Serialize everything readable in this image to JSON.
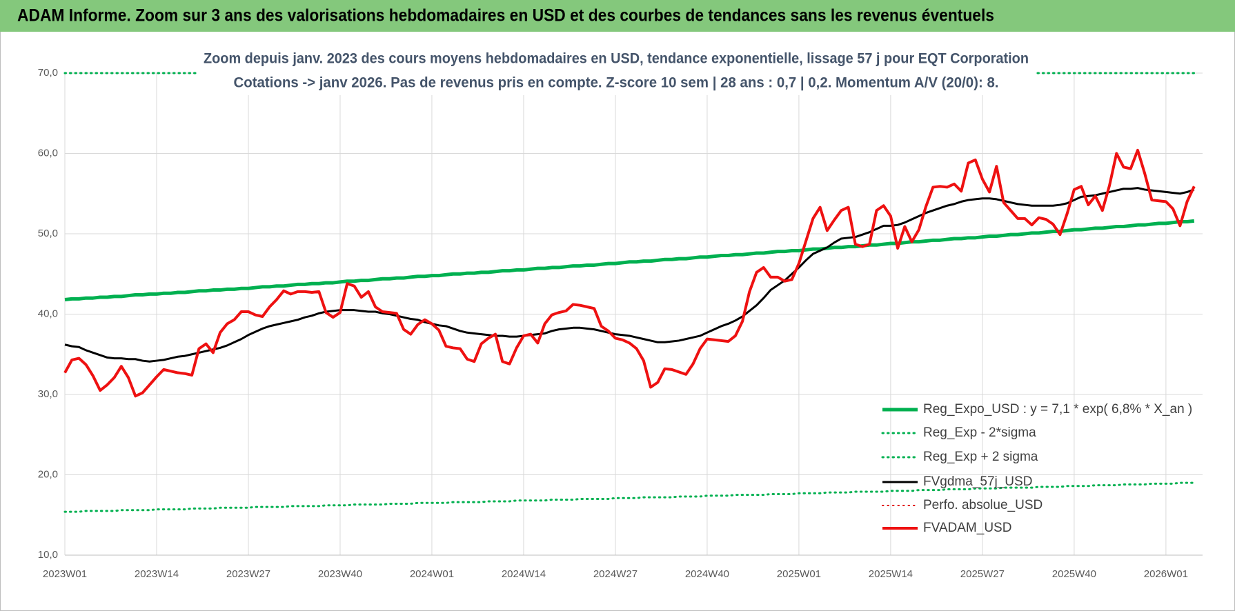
{
  "chart_data": {
    "type": "line",
    "title": "ADAM Informe. Zoom sur 3 ans des valorisations hebdomadaires en USD et des courbes de tendances sans les revenus éventuels",
    "subtitle": [
      "Zoom depuis janv. 2023 des cours moyens hebdomadaires en USD, tendance exponentielle, lissage 57 j pour EQT Corporation",
      "Cotations -> janv 2026. Pas de revenus pris en compte. Z-score 10 sem | 28 ans : 0,7 | 0,2. Momentum A/V (20/0): 8."
    ],
    "categories": [
      "2023W01",
      null,
      null,
      null,
      null,
      null,
      null,
      null,
      null,
      null,
      null,
      null,
      null,
      "2023W14",
      null,
      null,
      null,
      null,
      null,
      null,
      null,
      null,
      null,
      null,
      null,
      null,
      "2023W27",
      null,
      null,
      null,
      null,
      null,
      null,
      null,
      null,
      null,
      null,
      null,
      null,
      "2023W40",
      null,
      null,
      null,
      null,
      null,
      null,
      null,
      null,
      null,
      null,
      null,
      null,
      "2024W01",
      null,
      null,
      null,
      null,
      null,
      null,
      null,
      null,
      null,
      null,
      null,
      null,
      "2024W14",
      null,
      null,
      null,
      null,
      null,
      null,
      null,
      null,
      null,
      null,
      null,
      null,
      "2024W27",
      null,
      null,
      null,
      null,
      null,
      null,
      null,
      null,
      null,
      null,
      null,
      null,
      "2024W40",
      null,
      null,
      null,
      null,
      null,
      null,
      null,
      null,
      null,
      null,
      null,
      null,
      "2025W01",
      null,
      null,
      null,
      null,
      null,
      null,
      null,
      null,
      null,
      null,
      null,
      null,
      "2025W14",
      null,
      null,
      null,
      null,
      null,
      null,
      null,
      null,
      null,
      null,
      null,
      null,
      "2025W27",
      null,
      null,
      null,
      null,
      null,
      null,
      null,
      null,
      null,
      null,
      null,
      null,
      "2025W40",
      null,
      null,
      null,
      null,
      null,
      null,
      null,
      null,
      null,
      null,
      null,
      null,
      "2026W01",
      null,
      null,
      null,
      null
    ],
    "ylim": [
      10,
      70
    ],
    "yticks": [
      {
        "value": 10,
        "label": "10,0"
      },
      {
        "value": 20,
        "label": "20,0"
      },
      {
        "value": 30,
        "label": "30,0"
      },
      {
        "value": 40,
        "label": "40,0"
      },
      {
        "value": 50,
        "label": "50,0"
      },
      {
        "value": 60,
        "label": "60,0"
      },
      {
        "value": 70,
        "label": "70,0"
      }
    ],
    "grid": true,
    "legend": "lower right",
    "series": [
      {
        "name": "Reg_Expo_USD : y = 7,1 * exp( 6,8% *  X_an )",
        "color": "#00b050",
        "width": 5,
        "dash": "solid",
        "values": [
          41.8,
          41.9,
          41.9,
          42.0,
          42.0,
          42.1,
          42.1,
          42.2,
          42.2,
          42.3,
          42.4,
          42.4,
          42.5,
          42.5,
          42.6,
          42.6,
          42.7,
          42.7,
          42.8,
          42.9,
          42.9,
          43.0,
          43.0,
          43.1,
          43.1,
          43.2,
          43.2,
          43.3,
          43.4,
          43.4,
          43.5,
          43.5,
          43.6,
          43.7,
          43.7,
          43.8,
          43.8,
          43.9,
          43.9,
          44.0,
          44.1,
          44.1,
          44.2,
          44.2,
          44.3,
          44.4,
          44.4,
          44.5,
          44.5,
          44.6,
          44.7,
          44.7,
          44.8,
          44.8,
          44.9,
          45.0,
          45.0,
          45.1,
          45.1,
          45.2,
          45.2,
          45.3,
          45.4,
          45.4,
          45.5,
          45.5,
          45.6,
          45.7,
          45.7,
          45.8,
          45.8,
          45.9,
          46.0,
          46.0,
          46.1,
          46.1,
          46.2,
          46.3,
          46.3,
          46.4,
          46.5,
          46.5,
          46.6,
          46.6,
          46.7,
          46.8,
          46.8,
          46.9,
          46.9,
          47.0,
          47.1,
          47.1,
          47.2,
          47.3,
          47.3,
          47.4,
          47.4,
          47.5,
          47.6,
          47.6,
          47.7,
          47.8,
          47.8,
          47.9,
          47.9,
          48.0,
          48.1,
          48.1,
          48.2,
          48.3,
          48.3,
          48.4,
          48.4,
          48.5,
          48.6,
          48.6,
          48.7,
          48.8,
          48.8,
          48.9,
          49.0,
          49.0,
          49.1,
          49.2,
          49.2,
          49.3,
          49.4,
          49.4,
          49.5,
          49.5,
          49.6,
          49.7,
          49.7,
          49.8,
          49.9,
          49.9,
          50.0,
          50.1,
          50.1,
          50.2,
          50.3,
          50.3,
          50.4,
          50.5,
          50.5,
          50.6,
          50.7,
          50.7,
          50.8,
          50.9,
          50.9,
          51.0,
          51.1,
          51.1,
          51.2,
          51.3,
          51.3,
          51.4,
          51.5,
          51.5,
          51.6
        ]
      },
      {
        "name": "Reg_Exp - 2*sigma",
        "color": "#00b050",
        "width": 3,
        "dash": "dotted",
        "values": [
          15.4,
          15.4,
          15.4,
          15.5,
          15.5,
          15.5,
          15.5,
          15.5,
          15.6,
          15.6,
          15.6,
          15.6,
          15.6,
          15.7,
          15.7,
          15.7,
          15.7,
          15.7,
          15.8,
          15.8,
          15.8,
          15.8,
          15.9,
          15.9,
          15.9,
          15.9,
          15.9,
          16.0,
          16.0,
          16.0,
          16.0,
          16.0,
          16.1,
          16.1,
          16.1,
          16.1,
          16.1,
          16.2,
          16.2,
          16.2,
          16.2,
          16.3,
          16.3,
          16.3,
          16.3,
          16.3,
          16.4,
          16.4,
          16.4,
          16.4,
          16.5,
          16.5,
          16.5,
          16.5,
          16.5,
          16.6,
          16.6,
          16.6,
          16.6,
          16.6,
          16.7,
          16.7,
          16.7,
          16.7,
          16.8,
          16.8,
          16.8,
          16.8,
          16.8,
          16.9,
          16.9,
          16.9,
          16.9,
          17.0,
          17.0,
          17.0,
          17.0,
          17.0,
          17.1,
          17.1,
          17.1,
          17.1,
          17.2,
          17.2,
          17.2,
          17.2,
          17.2,
          17.3,
          17.3,
          17.3,
          17.3,
          17.4,
          17.4,
          17.4,
          17.4,
          17.5,
          17.5,
          17.5,
          17.5,
          17.5,
          17.6,
          17.6,
          17.6,
          17.6,
          17.7,
          17.7,
          17.7,
          17.7,
          17.8,
          17.8,
          17.8,
          17.8,
          17.9,
          17.9,
          17.9,
          17.9,
          17.9,
          18.0,
          18.0,
          18.0,
          18.0,
          18.1,
          18.1,
          18.1,
          18.1,
          18.2,
          18.2,
          18.2,
          18.2,
          18.3,
          18.3,
          18.3,
          18.3,
          18.4,
          18.4,
          18.4,
          18.4,
          18.4,
          18.5,
          18.5,
          18.5,
          18.5,
          18.6,
          18.6,
          18.6,
          18.6,
          18.7,
          18.7,
          18.7,
          18.7,
          18.8,
          18.8,
          18.8,
          18.8,
          18.9,
          18.9,
          18.9,
          18.9,
          19.0,
          19.0,
          19.0
        ]
      },
      {
        "name": "Reg_Exp + 2 sigma",
        "color": "#00b050",
        "width": 3,
        "dash": "dotted",
        "values": [
          70,
          70,
          70,
          70,
          70,
          70,
          70,
          70,
          70,
          70,
          70,
          70,
          70,
          70,
          70,
          70,
          70,
          70,
          70,
          70,
          70,
          70,
          70,
          70,
          70,
          70,
          70,
          70,
          70,
          70,
          70,
          70,
          70,
          70,
          70,
          70,
          70,
          70,
          70,
          70,
          70,
          70,
          70,
          70,
          70,
          70,
          70,
          70,
          70,
          70,
          70,
          70,
          70,
          70,
          70,
          70,
          70,
          70,
          70,
          70,
          70,
          70,
          70,
          70,
          70,
          70,
          70,
          70,
          70,
          70,
          70,
          70,
          70,
          70,
          70,
          70,
          70,
          70,
          70,
          70,
          70,
          70,
          70,
          70,
          70,
          70,
          70,
          70,
          70,
          70,
          70,
          70,
          70,
          70,
          70,
          70,
          70,
          70,
          70,
          70,
          70,
          70,
          70,
          70,
          70,
          70,
          70,
          70,
          70,
          70,
          70,
          70,
          70,
          70,
          70,
          70,
          70,
          70,
          70,
          70,
          70,
          70,
          70,
          70,
          70,
          70,
          70,
          70,
          70,
          70,
          70,
          70,
          70,
          70,
          70,
          70,
          70,
          70,
          70,
          70,
          70,
          70,
          70,
          70,
          70,
          70,
          70,
          70,
          70,
          70,
          70,
          70,
          70,
          70,
          70,
          70,
          70,
          70,
          70,
          70,
          70
        ]
      },
      {
        "name": "FVgdma_57j_USD",
        "color": "#000000",
        "width": 3,
        "dash": "solid",
        "values": [
          36.2,
          36.0,
          35.9,
          35.5,
          35.2,
          34.9,
          34.6,
          34.5,
          34.5,
          34.4,
          34.4,
          34.2,
          34.1,
          34.2,
          34.3,
          34.5,
          34.7,
          34.8,
          35.0,
          35.2,
          35.4,
          35.6,
          35.8,
          36.1,
          36.5,
          36.9,
          37.4,
          37.8,
          38.2,
          38.5,
          38.7,
          38.9,
          39.1,
          39.3,
          39.6,
          39.8,
          40.1,
          40.3,
          40.4,
          40.5,
          40.5,
          40.5,
          40.4,
          40.3,
          40.3,
          40.1,
          40.0,
          39.8,
          39.6,
          39.4,
          39.3,
          39.0,
          38.8,
          38.6,
          38.5,
          38.2,
          37.9,
          37.7,
          37.6,
          37.5,
          37.4,
          37.3,
          37.3,
          37.2,
          37.2,
          37.3,
          37.4,
          37.5,
          37.6,
          37.9,
          38.1,
          38.2,
          38.3,
          38.3,
          38.2,
          38.1,
          37.9,
          37.7,
          37.5,
          37.4,
          37.3,
          37.1,
          36.9,
          36.7,
          36.5,
          36.5,
          36.6,
          36.7,
          36.9,
          37.1,
          37.3,
          37.7,
          38.1,
          38.5,
          38.8,
          39.2,
          39.7,
          40.4,
          41.1,
          42.0,
          43.0,
          43.6,
          44.2,
          45.0,
          45.8,
          46.7,
          47.5,
          47.9,
          48.3,
          48.9,
          49.4,
          49.5,
          49.6,
          49.9,
          50.2,
          50.6,
          51.0,
          51.0,
          51.1,
          51.4,
          51.8,
          52.2,
          52.6,
          52.9,
          53.2,
          53.5,
          53.7,
          54.0,
          54.2,
          54.3,
          54.4,
          54.4,
          54.3,
          54.1,
          53.9,
          53.7,
          53.6,
          53.5,
          53.5,
          53.5,
          53.5,
          53.6,
          53.8,
          54.2,
          54.6,
          54.7,
          54.8,
          55.0,
          55.2,
          55.4,
          55.6,
          55.6,
          55.7,
          55.5,
          55.4,
          55.3,
          55.2,
          55.1,
          55.0,
          55.2,
          55.5
        ]
      },
      {
        "name": "Perfo. absolue_USD",
        "color": "#e00000",
        "width": 2,
        "dash": "dotted"
      },
      {
        "name": "FVADAM_USD",
        "color": "#ee1111",
        "width": 4,
        "dash": "solid",
        "values": [
          32.7,
          34.3,
          34.5,
          33.7,
          32.3,
          30.5,
          31.2,
          32.1,
          33.5,
          32.1,
          29.8,
          30.2,
          31.2,
          32.2,
          33.1,
          32.9,
          32.7,
          32.6,
          32.4,
          35.7,
          36.3,
          35.2,
          37.7,
          38.8,
          39.3,
          40.3,
          40.3,
          39.9,
          39.7,
          40.9,
          41.8,
          42.9,
          42.5,
          42.8,
          42.8,
          42.7,
          42.8,
          40.2,
          39.6,
          40.2,
          43.8,
          43.5,
          42.1,
          42.8,
          40.9,
          40.3,
          40.2,
          40.1,
          38.1,
          37.5,
          38.7,
          39.3,
          38.8,
          38.0,
          36.0,
          35.8,
          35.7,
          34.4,
          34.1,
          36.3,
          37.0,
          37.5,
          34.1,
          33.8,
          35.8,
          37.3,
          37.5,
          36.4,
          38.8,
          39.9,
          40.2,
          40.4,
          41.2,
          41.1,
          40.9,
          40.7,
          38.5,
          37.9,
          37.0,
          36.8,
          36.4,
          35.7,
          34.2,
          30.9,
          31.5,
          33.2,
          33.1,
          32.8,
          32.5,
          33.8,
          35.7,
          36.9,
          36.8,
          36.7,
          36.6,
          37.3,
          39.1,
          42.8,
          45.2,
          45.8,
          44.6,
          44.6,
          44.1,
          44.3,
          46.3,
          49.1,
          51.9,
          53.3,
          50.4,
          51.7,
          52.9,
          53.3,
          48.7,
          48.4,
          48.7,
          52.9,
          53.5,
          52.2,
          48.2,
          50.9,
          49.0,
          50.5,
          53.4,
          55.8,
          55.9,
          55.8,
          56.2,
          55.3,
          58.8,
          59.2,
          56.8,
          55.2,
          58.4,
          53.9,
          52.9,
          51.9,
          51.9,
          51.1,
          52.0,
          51.8,
          51.2,
          49.9,
          52.5,
          55.5,
          55.9,
          53.6,
          54.7,
          52.9,
          56.0,
          60.0,
          58.3,
          58.1,
          60.4,
          57.5,
          54.2,
          54.1,
          54.0,
          53.1,
          51.0,
          54.0,
          55.9
        ]
      }
    ]
  }
}
